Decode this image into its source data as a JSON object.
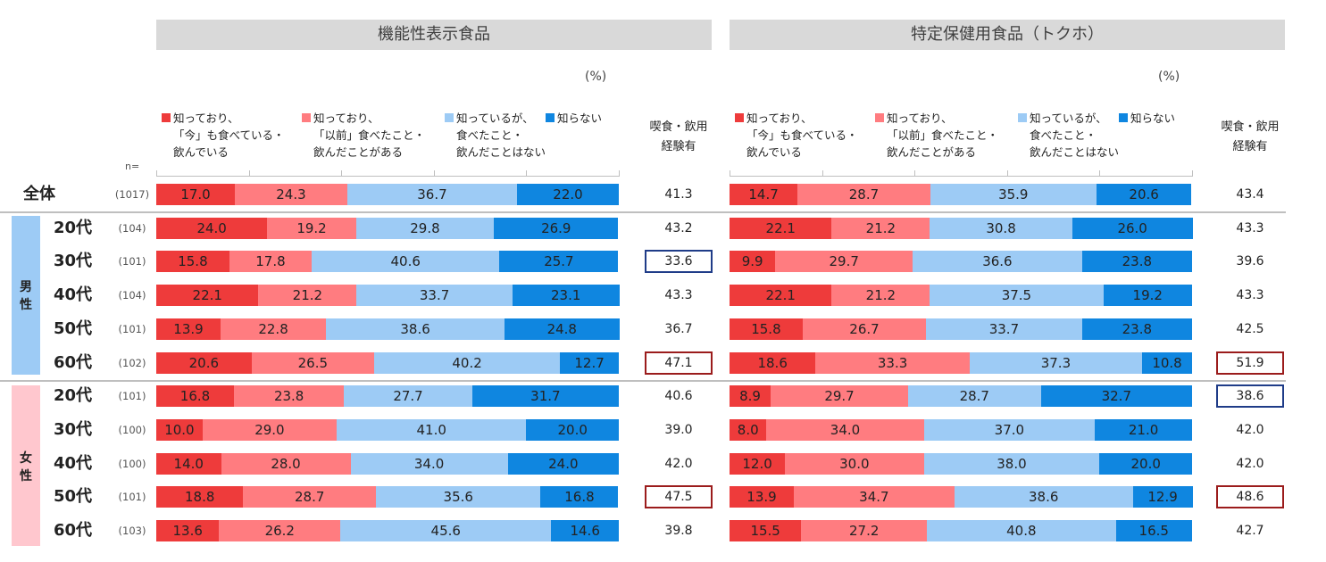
{
  "colors": {
    "c1": "#ee3b3b",
    "c2": "#ff7c80",
    "c3": "#9dcbf5",
    "c4": "#0f86e0",
    "male_band": "#9dcbf5",
    "female_band": "#ffc7ce"
  },
  "headers": {
    "n_label": "n=",
    "exp_label_line1": "喫食・飲用",
    "exp_label_line2": "経験有"
  },
  "legend": [
    {
      "lines": [
        "知っており、",
        "「今」も食べている・",
        "飲んでいる"
      ]
    },
    {
      "lines": [
        "知っており、",
        "「以前」食べたこと・",
        "飲んだことがある"
      ]
    },
    {
      "lines": [
        "知っているが、",
        "食べたこと・",
        "飲んだことはない"
      ]
    },
    {
      "lines": [
        "知らない"
      ]
    }
  ],
  "groups": {
    "male": "男\n性",
    "female": "女\n性"
  },
  "rows": [
    {
      "label": "全体",
      "n": "(1017)"
    },
    {
      "label": "20代",
      "n": "(104)"
    },
    {
      "label": "30代",
      "n": "(101)"
    },
    {
      "label": "40代",
      "n": "(104)"
    },
    {
      "label": "50代",
      "n": "(101)"
    },
    {
      "label": "60代",
      "n": "(102)"
    },
    {
      "label": "20代",
      "n": "(101)"
    },
    {
      "label": "30代",
      "n": "(100)"
    },
    {
      "label": "40代",
      "n": "(100)"
    },
    {
      "label": "50代",
      "n": "(101)"
    },
    {
      "label": "60代",
      "n": "(103)"
    }
  ],
  "chart_data": [
    {
      "type": "bar",
      "orientation": "horizontal-stacked-100",
      "title": "機能性表示食品",
      "unit_label": "(%)",
      "series": [
        {
          "name": "知っており、「今」も食べている・飲んでいる",
          "values": [
            17.0,
            24.0,
            15.8,
            22.1,
            13.9,
            20.6,
            16.8,
            10.0,
            14.0,
            18.8,
            13.6
          ]
        },
        {
          "name": "知っており、「以前」食べたこと・飲んだことがある",
          "values": [
            24.3,
            19.2,
            17.8,
            21.2,
            22.8,
            26.5,
            23.8,
            29.0,
            28.0,
            28.7,
            26.2
          ]
        },
        {
          "name": "知っているが、食べたこと・飲んだことはない",
          "values": [
            36.7,
            29.8,
            40.6,
            33.7,
            38.6,
            40.2,
            27.7,
            41.0,
            34.0,
            35.6,
            45.6
          ]
        },
        {
          "name": "知らない",
          "values": [
            22.0,
            26.9,
            25.7,
            23.1,
            24.8,
            12.7,
            31.7,
            20.0,
            24.0,
            16.8,
            14.6
          ]
        }
      ],
      "experience": [
        "41.3",
        "43.2",
        "33.6",
        "43.3",
        "36.7",
        "47.1",
        "40.6",
        "39.0",
        "42.0",
        "47.5",
        "39.8"
      ],
      "highlights": [
        "",
        "",
        "blue",
        "",
        "",
        "red",
        "",
        "",
        "",
        "red",
        ""
      ]
    },
    {
      "type": "bar",
      "orientation": "horizontal-stacked-100",
      "title": "特定保健用食品（トクホ）",
      "unit_label": "(%)",
      "series": [
        {
          "name": "知っており、「今」も食べている・飲んでいる",
          "values": [
            14.7,
            22.1,
            9.9,
            22.1,
            15.8,
            18.6,
            8.9,
            8.0,
            12.0,
            13.9,
            15.5
          ]
        },
        {
          "name": "知っており、「以前」食べたこと・飲んだことがある",
          "values": [
            28.7,
            21.2,
            29.7,
            21.2,
            26.7,
            33.3,
            29.7,
            34.0,
            30.0,
            34.7,
            27.2
          ]
        },
        {
          "name": "知っているが、食べたこと・飲んだことはない",
          "values": [
            35.9,
            30.8,
            36.6,
            37.5,
            33.7,
            37.3,
            28.7,
            37.0,
            38.0,
            38.6,
            40.8
          ]
        },
        {
          "name": "知らない",
          "values": [
            20.6,
            26.0,
            23.8,
            19.2,
            23.8,
            10.8,
            32.7,
            21.0,
            20.0,
            12.9,
            16.5
          ]
        }
      ],
      "experience": [
        "43.4",
        "43.3",
        "39.6",
        "43.3",
        "42.5",
        "51.9",
        "38.6",
        "42.0",
        "42.0",
        "48.6",
        "42.7"
      ],
      "highlights": [
        "",
        "",
        "",
        "",
        "",
        "red",
        "blue",
        "",
        "",
        "red",
        ""
      ]
    }
  ]
}
